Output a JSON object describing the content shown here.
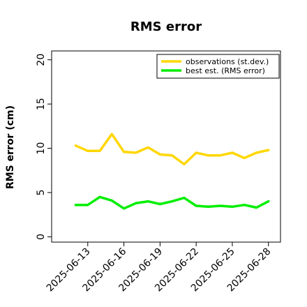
{
  "chart_data": {
    "type": "line",
    "title": "RMS error",
    "xlabel": "",
    "ylabel": "RMS error (cm)",
    "ylim": [
      -0.6,
      21
    ],
    "yticks": [
      0,
      5,
      10,
      15,
      20
    ],
    "xlim": [
      "2025-06-10",
      "2025-06-29"
    ],
    "xticks": [
      "2025-06-13",
      "2025-06-16",
      "2025-06-19",
      "2025-06-22",
      "2025-06-25",
      "2025-06-28"
    ],
    "highlighted_xtick": "2025-06-19",
    "highlight_color": "#228b22",
    "grid": false,
    "legend_position": "top-right",
    "x": [
      "2025-06-12",
      "2025-06-13",
      "2025-06-14",
      "2025-06-15",
      "2025-06-16",
      "2025-06-17",
      "2025-06-18",
      "2025-06-19",
      "2025-06-20",
      "2025-06-21",
      "2025-06-22",
      "2025-06-23",
      "2025-06-24",
      "2025-06-25",
      "2025-06-26",
      "2025-06-27",
      "2025-06-28"
    ],
    "series": [
      {
        "name": "observations (st.dev.)",
        "color": "#ffd700",
        "values": [
          10.3,
          9.7,
          9.7,
          11.6,
          9.6,
          9.5,
          10.1,
          9.3,
          9.2,
          8.2,
          9.5,
          9.2,
          9.2,
          9.5,
          8.9,
          9.5,
          9.8
        ]
      },
      {
        "name": "best est. (RMS error)",
        "color": "#00ee00",
        "values": [
          3.6,
          3.6,
          4.5,
          4.1,
          3.2,
          3.8,
          4.0,
          3.7,
          4.0,
          4.4,
          3.5,
          3.4,
          3.5,
          3.4,
          3.6,
          3.3,
          4.0
        ]
      }
    ]
  }
}
